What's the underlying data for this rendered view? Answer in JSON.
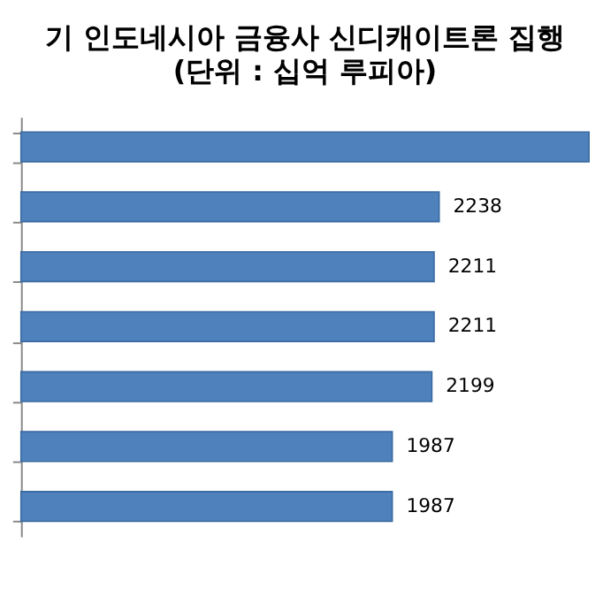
{
  "chart_data": {
    "type": "bar",
    "orientation": "horizontal",
    "title": "기 인도네시아 금융사 신디캐이트론 집행",
    "subtitle": "(단위 : 십억 루피아)",
    "categories": [
      null,
      null,
      null,
      null,
      null,
      null,
      null
    ],
    "values": [
      3040,
      2238,
      2211,
      2211,
      2199,
      1987,
      1987
    ],
    "value_labels": [
      null,
      "2238",
      "2211",
      "2211",
      "2199",
      "1987",
      "1987"
    ],
    "color": "#4f81bd",
    "xlim": [
      0,
      3040
    ],
    "grid": false,
    "tick_labels": false
  }
}
